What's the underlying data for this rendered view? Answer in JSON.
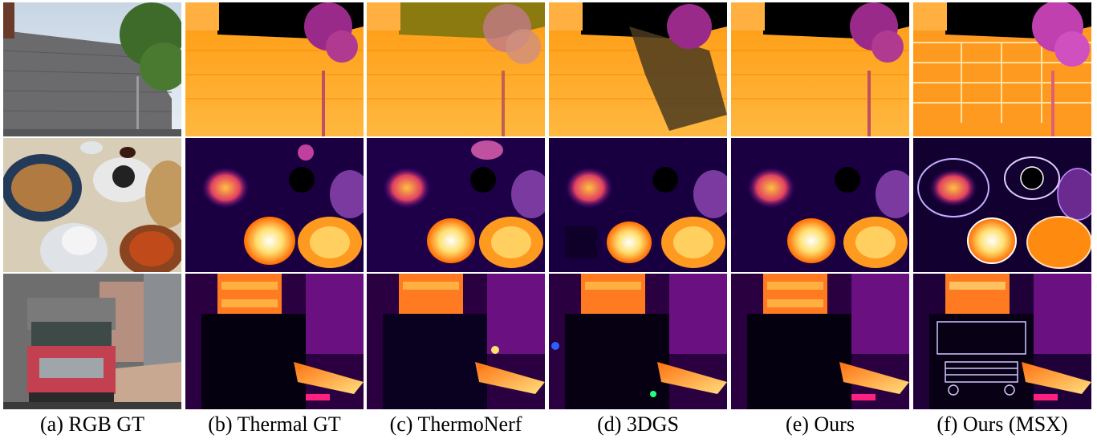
{
  "figure": {
    "rows": [
      "building",
      "dim-sum-table",
      "truck"
    ],
    "captions": [
      {
        "label": "(a)",
        "text": "RGB GT"
      },
      {
        "label": "(b)",
        "text": "Thermal GT"
      },
      {
        "label": "(c)",
        "text": "ThermoNerf"
      },
      {
        "label": "(d)",
        "text": "3DGS"
      },
      {
        "label": "(e)",
        "text": "Ours"
      },
      {
        "label": "(f)",
        "text": "Ours (MSX)"
      }
    ],
    "colors": {
      "thermal_hot": "#ffffff",
      "thermal_warm": "#ffb000",
      "thermal_mid": "#ff6a00",
      "thermal_cool": "#c0206a",
      "thermal_cold": "#1a0040",
      "thermal_bg": "#000000"
    }
  }
}
